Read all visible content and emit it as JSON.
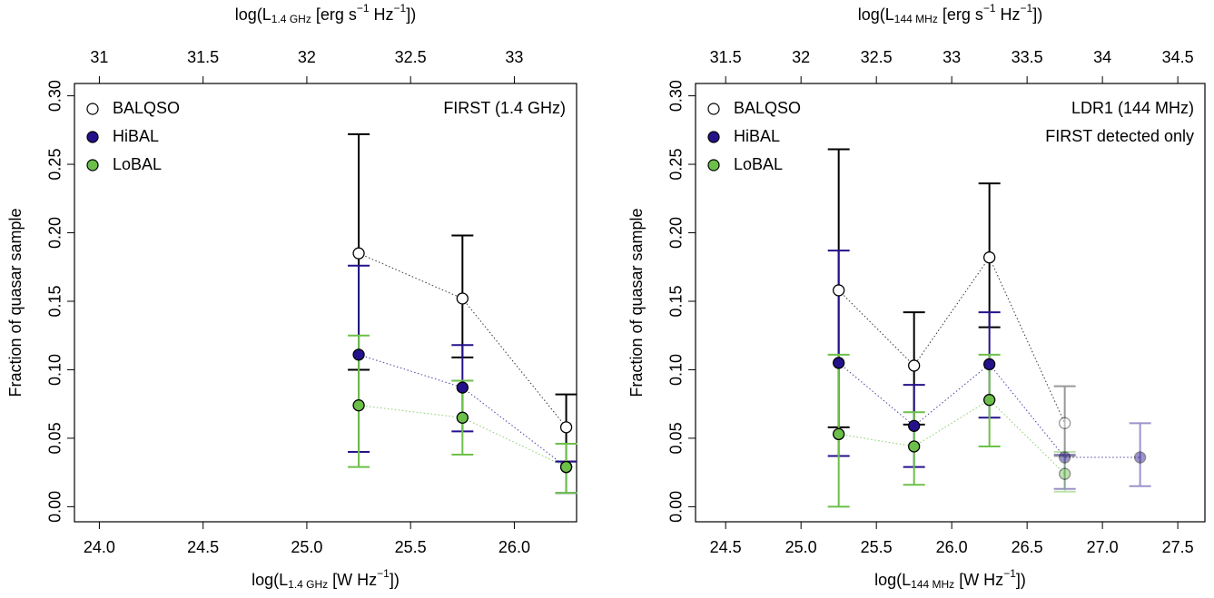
{
  "chart_data": [
    {
      "type": "errorbar-scatter",
      "annotations": [
        "FIRST (1.4 GHz)"
      ],
      "xlabel": [
        "log(L",
        "1.4 GHz",
        " [W Hz",
        "−1",
        "])"
      ],
      "x2label": [
        "log(L",
        "1.4 GHz",
        " [erg s",
        "−1",
        " Hz",
        "−1",
        "])"
      ],
      "ylabel": "Fraction of quasar sample",
      "x": [
        25.25,
        25.75,
        26.25
      ],
      "xlim": [
        23.88,
        26.3
      ],
      "xticks": [
        {
          "value": 24,
          "label": "24.0"
        },
        24.5,
        {
          "value": 25,
          "label": "25.0"
        },
        25.5,
        {
          "value": 26,
          "label": "26.0"
        }
      ],
      "x2lim": [
        30.88,
        33.3
      ],
      "x2ticks": [
        31,
        31.5,
        32,
        32.5,
        33
      ],
      "ylim": [
        -0.011,
        0.309
      ],
      "yticks": [
        {
          "value": 0,
          "label": "0.00"
        },
        0.05,
        {
          "value": 0.1,
          "label": "0.10"
        },
        0.15,
        {
          "value": 0.2,
          "label": "0.20"
        },
        0.25,
        {
          "value": 0.3,
          "label": "0.30"
        }
      ],
      "series": [
        {
          "name": "BALQSO",
          "color": "#000000",
          "marker": "open",
          "values": [
            0.185,
            0.152,
            0.058
          ],
          "yerr_lower": [
            0.1,
            0.109,
            0.033
          ],
          "yerr_upper": [
            0.272,
            0.198,
            0.082
          ],
          "point_opacity": [
            1,
            1,
            1
          ]
        },
        {
          "name": "HiBAL",
          "color": "#24128c",
          "marker": "filled",
          "values": [
            0.111,
            0.087,
            0.029
          ],
          "yerr_lower": [
            0.04,
            0.055,
            0.01
          ],
          "yerr_upper": [
            0.176,
            0.118,
            0.033
          ],
          "point_opacity": [
            1,
            1,
            1
          ]
        },
        {
          "name": "LoBAL",
          "color": "#6cc04a",
          "marker": "filled",
          "values": [
            0.074,
            0.065,
            0.029
          ],
          "yerr_lower": [
            0.029,
            0.038,
            0.01
          ],
          "yerr_upper": [
            0.125,
            0.092,
            0.046
          ],
          "point_opacity": [
            1,
            1,
            1
          ]
        }
      ]
    },
    {
      "type": "errorbar-scatter",
      "annotations": [
        "LDR1 (144 MHz)",
        "FIRST detected only"
      ],
      "xlabel": [
        "log(L",
        "144 MHz",
        " [W Hz",
        "−1",
        "])"
      ],
      "x2label": [
        "log(L",
        "144 MHz",
        " [erg s",
        "−1",
        " Hz",
        "−1",
        "])"
      ],
      "ylabel": "Fraction of quasar sample",
      "x": [
        25.25,
        25.75,
        26.25,
        26.75,
        27.25
      ],
      "xlim": [
        24.3,
        27.68
      ],
      "xticks": [
        24.5,
        {
          "value": 25,
          "label": "25.0"
        },
        25.5,
        {
          "value": 26,
          "label": "26.0"
        },
        26.5,
        {
          "value": 27,
          "label": "27.0"
        },
        27.5
      ],
      "x2lim": [
        31.3,
        34.68
      ],
      "x2ticks": [
        31.5,
        32,
        32.5,
        33,
        33.5,
        34,
        34.5
      ],
      "ylim": [
        -0.011,
        0.309
      ],
      "yticks": [
        {
          "value": 0,
          "label": "0.00"
        },
        0.05,
        {
          "value": 0.1,
          "label": "0.10"
        },
        0.15,
        {
          "value": 0.2,
          "label": "0.20"
        },
        0.25,
        {
          "value": 0.3,
          "label": "0.30"
        }
      ],
      "series": [
        {
          "name": "BALQSO",
          "color": "#000000",
          "marker": "open",
          "values": [
            0.158,
            0.103,
            0.182,
            0.061,
            null
          ],
          "yerr_lower": [
            0.058,
            0.06,
            0.131,
            0.037,
            null
          ],
          "yerr_upper": [
            0.261,
            0.142,
            0.236,
            0.088,
            null
          ],
          "point_opacity": [
            1,
            1,
            1,
            0.4,
            0.4
          ]
        },
        {
          "name": "HiBAL",
          "color": "#24128c",
          "marker": "filled",
          "values": [
            0.105,
            0.059,
            0.104,
            0.036,
            0.036
          ],
          "yerr_lower": [
            0.037,
            0.029,
            0.065,
            0.013,
            0.015
          ],
          "yerr_upper": [
            0.187,
            0.089,
            0.142,
            0.038,
            0.061
          ],
          "point_opacity": [
            1,
            1,
            1,
            0.45,
            0.45
          ]
        },
        {
          "name": "LoBAL",
          "color": "#6cc04a",
          "marker": "filled",
          "values": [
            0.053,
            0.044,
            0.078,
            0.024,
            null
          ],
          "yerr_lower": [
            0.0,
            0.016,
            0.044,
            0.011,
            null
          ],
          "yerr_upper": [
            0.111,
            0.069,
            0.111,
            0.04,
            null
          ],
          "point_opacity": [
            1,
            1,
            1,
            0.45,
            0.45
          ]
        }
      ]
    }
  ]
}
